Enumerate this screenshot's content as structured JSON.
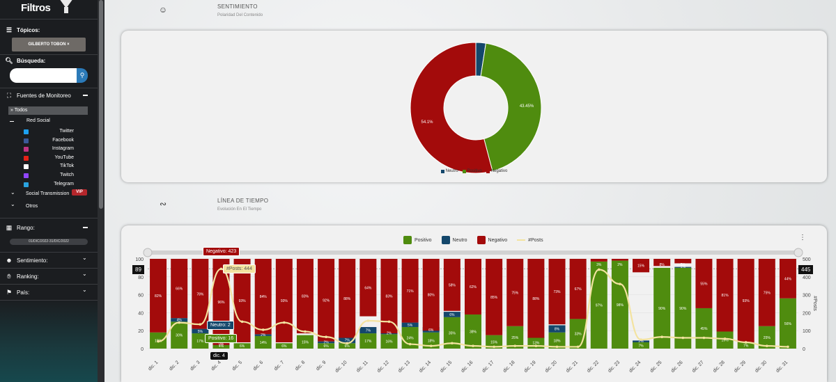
{
  "sidebar": {
    "title": "Filtros",
    "topicos_label": "Tópicos:",
    "topic_chip": "GILBERTO TOBON",
    "busqueda_label": "Búsqueda:",
    "search_placeholder": "",
    "fuentes_label": "Fuentes de Monitoreo",
    "todos_label": "Todos",
    "red_social_label": "Red Social",
    "sources": [
      {
        "label": "Twitter",
        "color": "#1da1f2"
      },
      {
        "label": "Facebook",
        "color": "#3b5998"
      },
      {
        "label": "Instagram",
        "color": "#c13584"
      },
      {
        "label": "YouTube",
        "color": "#e62117"
      },
      {
        "label": "TikTok",
        "color": "#ffffff"
      },
      {
        "label": "Twitch",
        "color": "#9146ff"
      },
      {
        "label": "Telegram",
        "color": "#2aa3df"
      }
    ],
    "social_transmission_label": "Social Transmission",
    "vip_badge": "VIP",
    "otros_label": "Otros",
    "rango_label": "Rango:",
    "rango_value": "01/DIC/2022-31/DIC/2022",
    "sentimiento_label": "Sentimiento:",
    "ranking_label": "Ranking:",
    "pais_label": "País:"
  },
  "sentimiento": {
    "title": "SENTIMIENTO",
    "subtitle": "Polaridad Del Contenido",
    "labels": {
      "positivo": "43.45%",
      "negativo": "54.1%"
    },
    "legend": [
      "Neutro",
      "Positivo",
      "Negativo"
    ]
  },
  "timeline": {
    "title": "LÍNEA DE TIEMPO",
    "subtitle": "Evolución En El Tiempo",
    "legend": [
      "Positivo",
      "Neutro",
      "Negativo",
      "#Posts"
    ],
    "left_badge": "89",
    "right_badge": "445",
    "right_axis_label": "#Posts",
    "tooltips": {
      "negativo": "Negativo: 423",
      "posts": "#Posts: 444",
      "neutro": "Neutro: 2",
      "positivo": "Positivo: 16",
      "date": "dic. 4"
    }
  },
  "colors": {
    "positivo": "#4f8c0f",
    "neutro": "#14476b",
    "negativo": "#a30b0b",
    "posts": "#f3e3a0"
  },
  "chart_data": {
    "type": "bar",
    "title": "",
    "xlabel": "",
    "ylabel": "",
    "y2label": "#Posts",
    "ylim": [
      0,
      100
    ],
    "y2lim": [
      0,
      500
    ],
    "categories": [
      "dic. 1",
      "dic. 2",
      "dic. 3",
      "dic. 4",
      "dic. 5",
      "dic. 6",
      "dic. 7",
      "dic. 8",
      "dic. 9",
      "dic. 10",
      "dic. 11",
      "dic. 12",
      "dic. 13",
      "dic. 14",
      "dic. 15",
      "dic. 16",
      "dic. 17",
      "dic. 18",
      "dic. 19",
      "dic. 20",
      "dic. 21",
      "dic. 22",
      "dic. 23",
      "dic. 24",
      "dic. 25",
      "dic. 26",
      "dic. 27",
      "dic. 28",
      "dic. 29",
      "dic. 30",
      "dic. 31"
    ],
    "series": [
      {
        "name": "Positivo",
        "values": [
          18,
          30,
          17,
          4,
          6,
          14,
          6,
          15,
          6,
          6,
          17,
          16,
          24,
          18,
          35,
          38,
          15,
          25,
          13,
          18,
          33,
          97,
          98,
          7,
          90,
          90,
          45,
          19,
          7,
          25,
          56
        ]
      },
      {
        "name": "Neutro",
        "values": [
          0,
          4,
          5,
          0.5,
          0,
          2,
          0,
          0,
          2,
          7,
          7,
          2,
          5,
          6,
          6,
          0,
          0,
          0,
          0,
          8,
          0,
          0,
          0,
          2,
          0,
          1,
          0,
          0,
          0,
          0,
          0
        ]
      },
      {
        "name": "Negativo",
        "values": [
          82,
          66,
          78,
          96,
          93,
          84,
          93,
          83,
          92,
          88,
          64,
          83,
          71,
          80,
          58,
          62,
          85,
          75,
          88,
          73,
          67,
          3,
          2,
          15,
          8,
          5,
          55,
          81,
          93,
          75,
          44
        ]
      },
      {
        "name": "#Posts",
        "values": [
          40,
          145,
          135,
          444,
          150,
          105,
          145,
          95,
          65,
          30,
          155,
          150,
          25,
          15,
          30,
          15,
          10,
          15,
          15,
          10,
          10,
          440,
          360,
          50,
          65,
          60,
          60,
          55,
          35,
          15,
          10
        ]
      }
    ],
    "data_labels": {
      "Positivo": [
        "18%",
        "30%",
        "17%",
        "4%",
        "6%",
        "14%",
        "6%",
        "15%",
        "6%",
        "6%",
        "17%",
        "16%",
        "24%",
        "18%",
        "35%",
        "38%",
        "15%",
        "25%",
        "13%",
        "18%",
        "33%",
        "97%",
        "98%",
        "7%",
        "90%",
        "90%",
        "45%",
        "19%",
        "7%",
        "25%",
        "56%"
      ],
      "Neutro": [
        "",
        "4%",
        "5%",
        "0%",
        "",
        "2%",
        "",
        "",
        "2%",
        "7%",
        "7%",
        "2%",
        "5%",
        "6%",
        "6%",
        "",
        "",
        "",
        "",
        "8%",
        "",
        "",
        "",
        "2%",
        "",
        "1%",
        "",
        "",
        "",
        "",
        ""
      ],
      "Negativo": [
        "82%",
        "66%",
        "78%",
        "96%",
        "93%",
        "84%",
        "93%",
        "83%",
        "92%",
        "88%",
        "64%",
        "83%",
        "71%",
        "80%",
        "58%",
        "62%",
        "85%",
        "75%",
        "88%",
        "73%",
        "67%",
        "3%",
        "2%",
        "15%",
        "8%",
        "5%",
        "55%",
        "81%",
        "93%",
        "75%",
        "44%"
      ]
    },
    "left_ticks": [
      "0",
      "20",
      "40",
      "60",
      "80",
      "100"
    ],
    "right_ticks": [
      "0",
      "100",
      "200",
      "300",
      "400",
      "500"
    ]
  }
}
